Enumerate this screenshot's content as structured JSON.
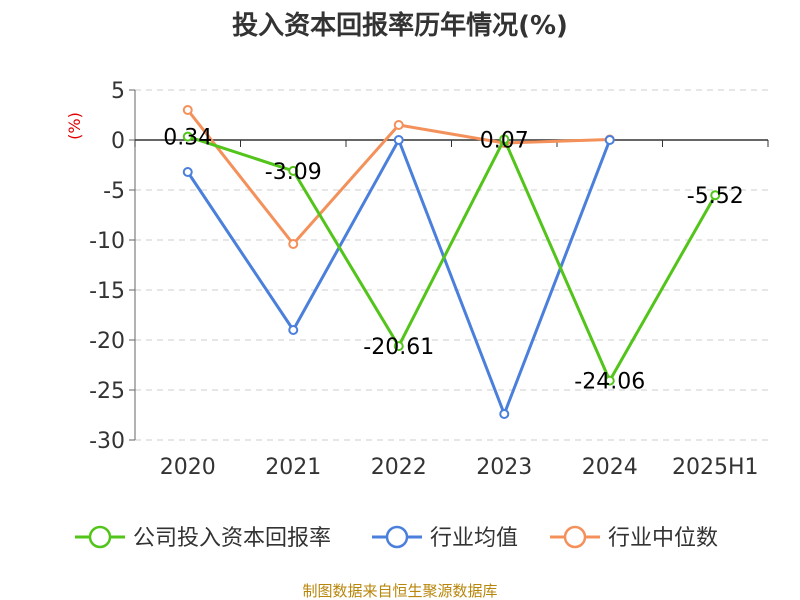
{
  "chart_data": {
    "type": "line",
    "title": "投入资本回报率历年情况(%)",
    "unit_label": "(%)",
    "categories": [
      "2020",
      "2021",
      "2022",
      "2023",
      "2024",
      "2025H1"
    ],
    "ylim": [
      -30,
      5
    ],
    "yticks": [
      5,
      0,
      -5,
      -10,
      -15,
      -20,
      -25,
      -30
    ],
    "grid": true,
    "legend_position": "bottom",
    "series": [
      {
        "name": "公司投入资本回报率",
        "color": "#52c41a",
        "values": [
          0.34,
          -3.09,
          -20.61,
          0.07,
          -24.06,
          -5.52
        ],
        "labels": [
          "0.34",
          "-3.09",
          "-20.61",
          "0.07",
          "-24.06",
          "-5.52"
        ]
      },
      {
        "name": "行业均值",
        "color": "#4a7fdc",
        "values": [
          -3.2,
          -19.0,
          0.0,
          -27.4,
          0.0,
          null
        ]
      },
      {
        "name": "行业中位数",
        "color": "#f4905a",
        "values": [
          3.0,
          -10.4,
          1.5,
          -0.3,
          0.05,
          null
        ]
      }
    ]
  },
  "source_text": "制图数据来自恒生聚源数据库"
}
